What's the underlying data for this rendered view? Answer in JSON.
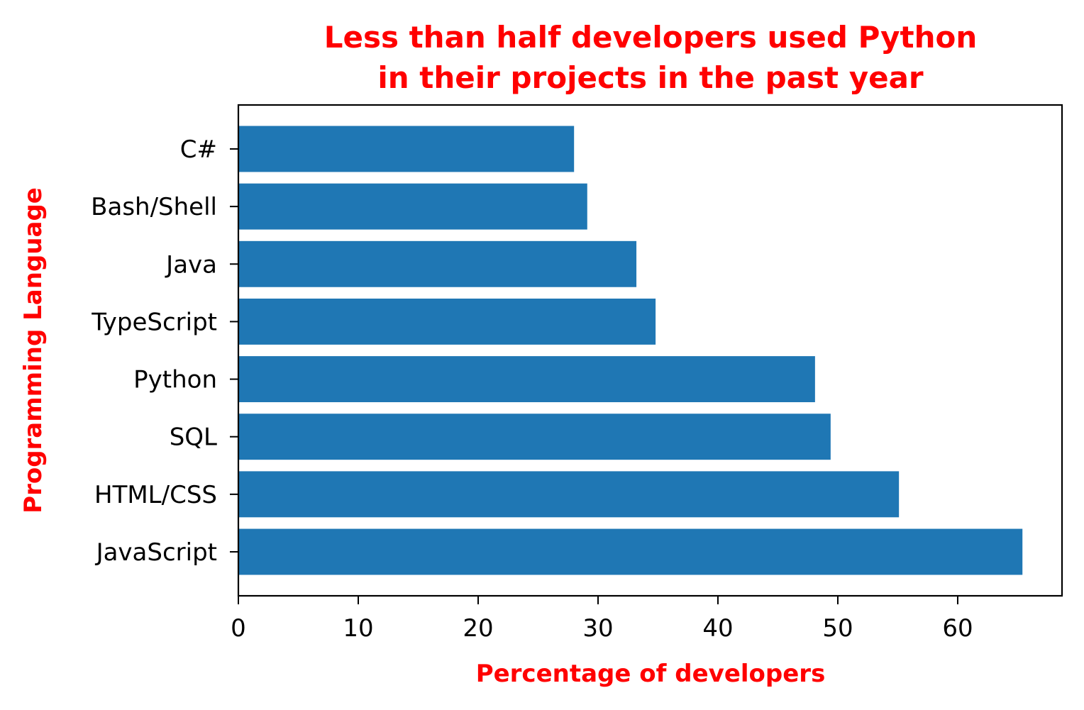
{
  "chart_data": {
    "type": "bar",
    "orientation": "horizontal",
    "title_lines": [
      "Less than half developers used Python",
      "in their projects in the past year"
    ],
    "xlabel": "Percentage of developers",
    "ylabel": "Programming Language",
    "categories": [
      "JavaScript",
      "HTML/CSS",
      "SQL",
      "Python",
      "TypeScript",
      "Java",
      "Bash/Shell",
      "C#"
    ],
    "values": [
      65.4,
      55.1,
      49.4,
      48.1,
      34.8,
      33.2,
      29.1,
      28.0
    ],
    "xlim": [
      0,
      68.7
    ],
    "xticks": [
      0,
      10,
      20,
      30,
      40,
      50,
      60
    ],
    "grid": false,
    "bar_color": "#1f77b4",
    "label_color": "#ff0000"
  }
}
